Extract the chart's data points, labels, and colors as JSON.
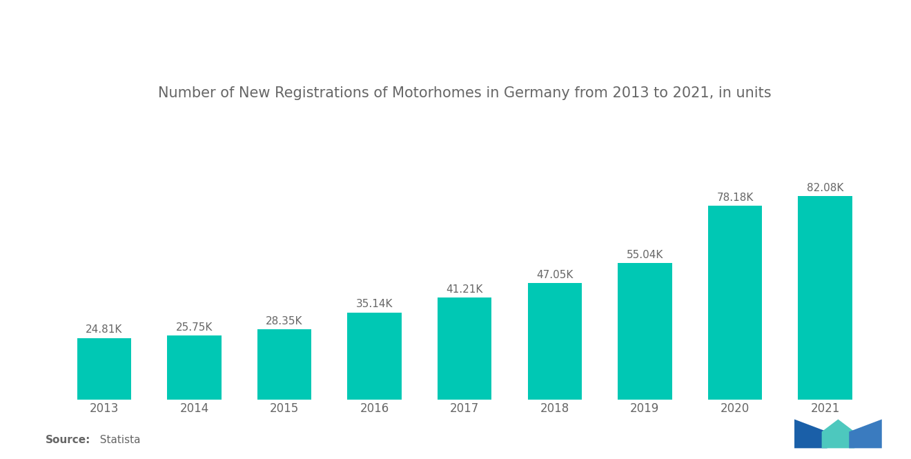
{
  "title": "Number of New Registrations of Motorhomes in Germany from 2013 to 2021, in units",
  "categories": [
    "2013",
    "2014",
    "2015",
    "2016",
    "2017",
    "2018",
    "2019",
    "2020",
    "2021"
  ],
  "values": [
    24810,
    25750,
    28350,
    35140,
    41210,
    47050,
    55040,
    78180,
    82080
  ],
  "labels": [
    "24.81K",
    "25.75K",
    "28.35K",
    "35.14K",
    "41.21K",
    "47.05K",
    "55.04K",
    "78.18K",
    "82.08K"
  ],
  "bar_color": "#00C8B4",
  "background_color": "#ffffff",
  "title_color": "#666666",
  "label_color": "#666666",
  "tick_color": "#666666",
  "source_bold": "Source:",
  "source_normal": "  Statista",
  "source_color": "#666666",
  "ylim": [
    0,
    115000
  ],
  "title_fontsize": 15,
  "label_fontsize": 11,
  "tick_fontsize": 12,
  "source_fontsize": 11,
  "bar_width": 0.6
}
